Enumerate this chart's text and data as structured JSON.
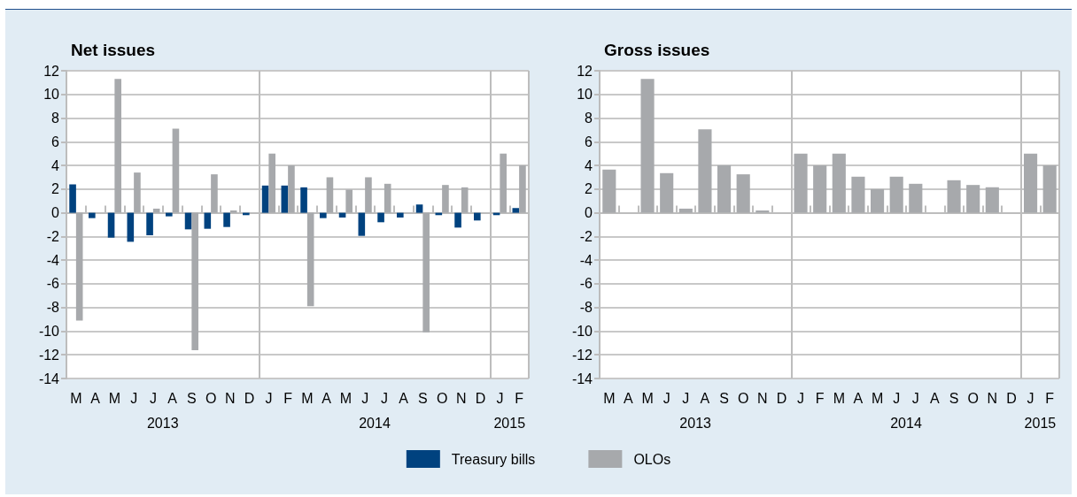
{
  "chart_data": [
    {
      "type": "bar",
      "title": "Net issues",
      "categories": [
        "M",
        "A",
        "M",
        "J",
        "J",
        "A",
        "S",
        "O",
        "N",
        "D",
        "J",
        "F",
        "M",
        "A",
        "M",
        "J",
        "J",
        "A",
        "S",
        "O",
        "N",
        "D",
        "J",
        "F"
      ],
      "series": [
        {
          "name": "Treasury bills",
          "color": "#00427f",
          "values": [
            2.4,
            -0.45,
            -2.1,
            -2.45,
            -1.9,
            -0.3,
            -1.4,
            -1.35,
            -1.2,
            -0.2,
            2.3,
            2.3,
            2.15,
            -0.45,
            -0.4,
            -1.95,
            -0.8,
            -0.4,
            0.7,
            -0.2,
            -1.25,
            -0.65,
            -0.2,
            0.4
          ]
        },
        {
          "name": "OLOs",
          "color": "#a7a9ac",
          "values": [
            -9.1,
            null,
            11.3,
            3.4,
            0.35,
            7.1,
            -11.6,
            3.25,
            0.2,
            null,
            5.0,
            4.0,
            -7.9,
            3.0,
            1.95,
            3.0,
            2.45,
            null,
            -10.1,
            2.35,
            2.15,
            null,
            5.0,
            4.0
          ]
        }
      ],
      "ylim": [
        -14,
        12
      ],
      "yticks": [
        -14,
        -12,
        -10,
        -8,
        -6,
        -4,
        -2,
        0,
        2,
        4,
        6,
        8,
        10,
        12
      ],
      "grid": "y",
      "legend": "bottom",
      "annotations": [
        "2013",
        "2014",
        "2015"
      ]
    },
    {
      "type": "bar",
      "title": "Gross issues",
      "categories": [
        "M",
        "A",
        "M",
        "J",
        "J",
        "A",
        "S",
        "O",
        "N",
        "D",
        "J",
        "F",
        "M",
        "A",
        "M",
        "J",
        "J",
        "A",
        "S",
        "O",
        "N",
        "D",
        "J",
        "F"
      ],
      "series": [
        {
          "color": "#a7a9ac",
          "values": [
            3.65,
            null,
            11.3,
            3.35,
            0.35,
            7.05,
            4.0,
            3.25,
            0.2,
            null,
            5.0,
            4.0,
            5.0,
            3.05,
            2.0,
            3.05,
            2.45,
            null,
            2.75,
            2.35,
            2.15,
            null,
            5.0,
            4.0
          ]
        }
      ],
      "ylim": [
        -14,
        12
      ],
      "yticks": [
        -14,
        -12,
        -10,
        -8,
        -6,
        -4,
        -2,
        0,
        2,
        4,
        6,
        8,
        10,
        12
      ],
      "grid": "y",
      "legend": false,
      "annotations": [
        "2013",
        "2014",
        "2015"
      ]
    }
  ]
}
